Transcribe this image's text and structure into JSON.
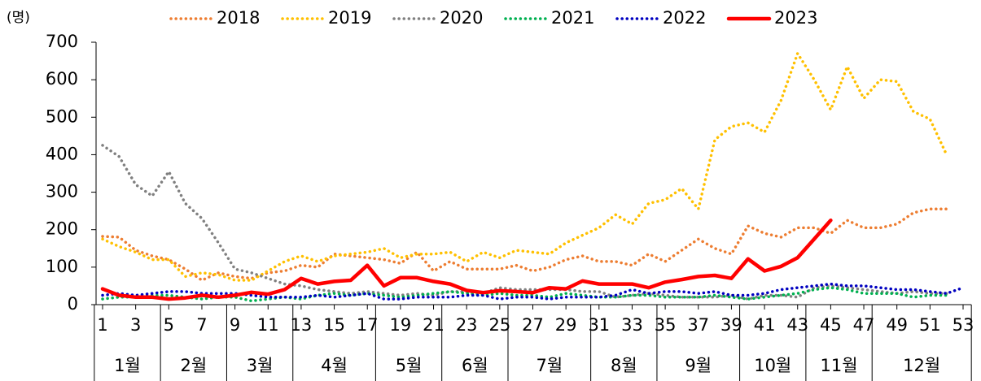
{
  "chart_data": {
    "type": "line",
    "y_unit": "(명)",
    "x": [
      1,
      2,
      3,
      4,
      5,
      6,
      7,
      8,
      9,
      10,
      11,
      12,
      13,
      14,
      15,
      16,
      17,
      18,
      19,
      20,
      21,
      22,
      23,
      24,
      25,
      26,
      27,
      28,
      29,
      30,
      31,
      32,
      33,
      34,
      35,
      36,
      37,
      38,
      39,
      40,
      41,
      42,
      43,
      44,
      45,
      46,
      47,
      48,
      49,
      50,
      51,
      52,
      53
    ],
    "xlim": [
      1,
      53
    ],
    "xticks": [
      1,
      3,
      5,
      7,
      9,
      11,
      13,
      15,
      17,
      19,
      21,
      23,
      25,
      27,
      29,
      31,
      33,
      35,
      37,
      39,
      41,
      43,
      45,
      47,
      49,
      51,
      53
    ],
    "ylim": [
      0,
      700
    ],
    "yticks": [
      0,
      100,
      200,
      300,
      400,
      500,
      600,
      700
    ],
    "grid": false,
    "legend": "top",
    "month_groups": [
      {
        "label": "1월",
        "weeks": [
          1,
          4
        ]
      },
      {
        "label": "2월",
        "weeks": [
          5,
          8
        ]
      },
      {
        "label": "3월",
        "weeks": [
          9,
          12
        ]
      },
      {
        "label": "4월",
        "weeks": [
          13,
          17
        ]
      },
      {
        "label": "5월",
        "weeks": [
          18,
          21
        ]
      },
      {
        "label": "6월",
        "weeks": [
          22,
          25
        ]
      },
      {
        "label": "7월",
        "weeks": [
          26,
          30
        ]
      },
      {
        "label": "8월",
        "weeks": [
          31,
          34
        ]
      },
      {
        "label": "9월",
        "weeks": [
          35,
          39
        ]
      },
      {
        "label": "10월",
        "weeks": [
          40,
          43
        ]
      },
      {
        "label": "11월",
        "weeks": [
          44,
          47
        ]
      },
      {
        "label": "12월",
        "weeks": [
          48,
          53
        ]
      }
    ],
    "series": [
      {
        "name": "2018",
        "color": "#ed7d31",
        "line_style": "dotted",
        "values": [
          182,
          180,
          145,
          130,
          120,
          95,
          65,
          85,
          75,
          70,
          85,
          90,
          105,
          100,
          135,
          130,
          125,
          120,
          110,
          140,
          90,
          115,
          95,
          95,
          95,
          105,
          90,
          100,
          120,
          130,
          115,
          115,
          105,
          135,
          115,
          145,
          175,
          150,
          135,
          210,
          190,
          180,
          205,
          205,
          190,
          225,
          205,
          205,
          215,
          245,
          255,
          255,
          null
        ]
      },
      {
        "name": "2019",
        "color": "#ffc000",
        "line_style": "dotted",
        "values": [
          175,
          155,
          140,
          120,
          120,
          75,
          85,
          80,
          65,
          65,
          90,
          115,
          130,
          115,
          130,
          135,
          140,
          150,
          125,
          135,
          135,
          140,
          115,
          140,
          125,
          145,
          140,
          135,
          165,
          185,
          205,
          240,
          215,
          270,
          280,
          310,
          255,
          440,
          475,
          485,
          460,
          545,
          670,
          600,
          520,
          635,
          550,
          600,
          595,
          515,
          495,
          400,
          null
        ]
      },
      {
        "name": "2020",
        "color": "#808080",
        "line_style": "dotted",
        "values": [
          425,
          395,
          320,
          290,
          355,
          270,
          230,
          165,
          95,
          85,
          70,
          55,
          50,
          40,
          35,
          30,
          35,
          30,
          25,
          30,
          25,
          35,
          35,
          30,
          45,
          40,
          40,
          40,
          40,
          35,
          35,
          20,
          25,
          30,
          25,
          20,
          20,
          20,
          25,
          15,
          25,
          25,
          20,
          45,
          50,
          45,
          40,
          35,
          30,
          35,
          30,
          30,
          null
        ]
      },
      {
        "name": "2021",
        "color": "#00b050",
        "line_style": "dotted",
        "values": [
          15,
          20,
          20,
          25,
          25,
          20,
          15,
          20,
          20,
          10,
          15,
          20,
          15,
          25,
          30,
          25,
          30,
          25,
          20,
          25,
          30,
          35,
          30,
          25,
          30,
          25,
          25,
          20,
          30,
          25,
          20,
          20,
          25,
          25,
          20,
          20,
          20,
          25,
          20,
          15,
          20,
          25,
          30,
          40,
          45,
          40,
          30,
          30,
          30,
          20,
          25,
          25,
          null
        ]
      },
      {
        "name": "2022",
        "color": "#0000c0",
        "line_style": "dotted",
        "values": [
          25,
          30,
          25,
          30,
          35,
          35,
          30,
          30,
          30,
          25,
          20,
          20,
          20,
          25,
          20,
          25,
          30,
          15,
          15,
          20,
          20,
          20,
          25,
          25,
          15,
          20,
          20,
          15,
          20,
          20,
          20,
          25,
          40,
          30,
          35,
          35,
          30,
          35,
          25,
          25,
          30,
          40,
          45,
          50,
          55,
          50,
          50,
          45,
          40,
          40,
          35,
          30,
          45
        ]
      },
      {
        "name": "2023",
        "color": "#ff0000",
        "line_style": "solid",
        "values": [
          42,
          25,
          20,
          20,
          15,
          18,
          25,
          20,
          25,
          33,
          28,
          40,
          70,
          55,
          62,
          65,
          105,
          50,
          72,
          72,
          62,
          55,
          38,
          32,
          37,
          35,
          32,
          45,
          42,
          63,
          55,
          55,
          55,
          45,
          60,
          67,
          75,
          78,
          70,
          122,
          90,
          102,
          125,
          175,
          225,
          null,
          null,
          null,
          null,
          null,
          null,
          null,
          null
        ]
      }
    ]
  }
}
